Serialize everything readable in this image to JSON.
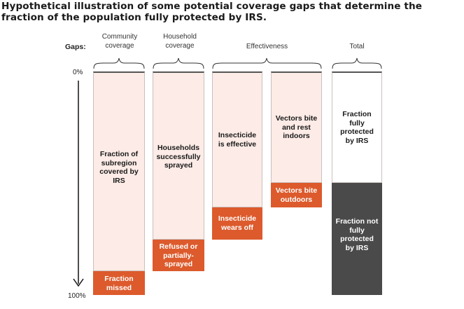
{
  "title": "Hypothetical illustration of some potential coverage gaps that determine the fraction of the population fully protected by IRS.",
  "gaps_label": "Gaps:",
  "axis": {
    "top": "0%",
    "bottom": "100%"
  },
  "headers": {
    "community": "Community\ncoverage",
    "household": "Household\ncoverage",
    "effectiveness": "Effectiveness",
    "total": "Total"
  },
  "columns": [
    {
      "upper": "Fraction of\nsubregion\ncovered by\nIRS",
      "lower": "Fraction\nmissed"
    },
    {
      "upper": "Households\nsuccessfully\nsprayed",
      "lower": "Refused or\npartially-\nsprayed"
    },
    {
      "upper": "Insecticide\nis effective",
      "lower": "Insecticide\nwears off"
    },
    {
      "upper": "Vectors bite\nand rest\nindoors",
      "lower": "Vectors bite\noutdoors"
    },
    {
      "upper": "Fraction\nfully\nprotected\nby IRS",
      "lower": "Fraction not\nfully\nprotected\nby IRS"
    }
  ],
  "colors": {
    "gap": "#dc5a2c",
    "covered": "#fcebe6",
    "protected": "#ffffff",
    "not_protected": "#4a4a4a"
  }
}
